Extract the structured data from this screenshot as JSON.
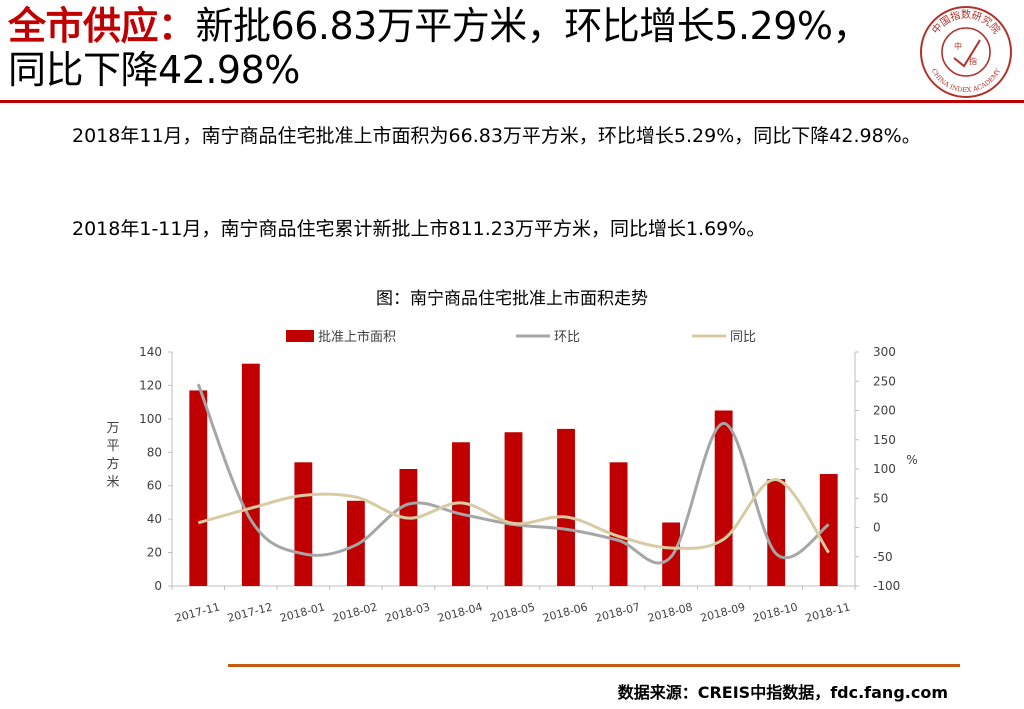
{
  "header": {
    "title_accent": "全市供应：",
    "title_line1": "新批66.83万平方米，环比增长5.29%，",
    "title_line2": "同比下降42.98%"
  },
  "logo": {
    "text_top": "中国指数研究院",
    "text_bottom": "CHINA INDEX ACADEMY",
    "center_left": "中",
    "center_right": "指"
  },
  "body": {
    "paragraph1": "2018年11月，南宁商品住宅批准上市面积为66.83万平方米，环比增长5.29%，同比下降42.98%。",
    "paragraph2": "2018年1-11月，南宁商品住宅累计新批上市811.23万平方米，同比增长1.69%。"
  },
  "chart_data": {
    "type": "bar",
    "title": "图：南宁商品住宅批准上市面积走势",
    "categories": [
      "2017-11",
      "2017-12",
      "2018-01",
      "2018-02",
      "2018-03",
      "2018-04",
      "2018-05",
      "2018-06",
      "2018-07",
      "2018-08",
      "2018-09",
      "2018-10",
      "2018-11"
    ],
    "series": [
      {
        "name": "批准上市面积",
        "type": "bar",
        "axis": "left",
        "color": "#c00000",
        "values": [
          117,
          133,
          74,
          51,
          70,
          86,
          92,
          94,
          74,
          38,
          105,
          64,
          67
        ]
      },
      {
        "name": "环比",
        "type": "line",
        "axis": "right",
        "color": "#a6a6a6",
        "values": [
          245,
          13,
          -45,
          -30,
          40,
          23,
          5,
          -3,
          -22,
          -50,
          178,
          -45,
          5
        ]
      },
      {
        "name": "同比",
        "type": "line",
        "axis": "right",
        "color": "#d8cba3",
        "values": [
          8,
          33,
          55,
          52,
          16,
          42,
          7,
          18,
          -15,
          -35,
          -20,
          82,
          -43
        ]
      }
    ],
    "ylabel": "万平方米",
    "y2label": "%",
    "ylim": [
      0,
      140
    ],
    "yticks": [
      0,
      20,
      40,
      60,
      80,
      100,
      120,
      140
    ],
    "y2lim": [
      -100,
      300
    ],
    "y2ticks": [
      -100,
      -50,
      0,
      50,
      100,
      150,
      200,
      250,
      300
    ],
    "legend": "top",
    "grid": false
  },
  "footer": {
    "source": "数据来源：CREIS中指数据，fdc.fang.com"
  },
  "colors": {
    "accent": "#c00000",
    "footer_rule": "#c55a11"
  }
}
